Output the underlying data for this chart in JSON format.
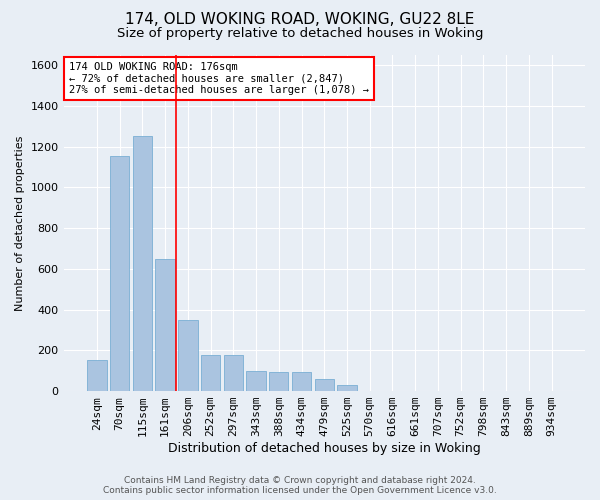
{
  "title1": "174, OLD WOKING ROAD, WOKING, GU22 8LE",
  "title2": "Size of property relative to detached houses in Woking",
  "xlabel": "Distribution of detached houses by size in Woking",
  "ylabel": "Number of detached properties",
  "categories": [
    "24sqm",
    "70sqm",
    "115sqm",
    "161sqm",
    "206sqm",
    "252sqm",
    "297sqm",
    "343sqm",
    "388sqm",
    "434sqm",
    "479sqm",
    "525sqm",
    "570sqm",
    "616sqm",
    "661sqm",
    "707sqm",
    "752sqm",
    "798sqm",
    "843sqm",
    "889sqm",
    "934sqm"
  ],
  "values": [
    155,
    1155,
    1250,
    650,
    350,
    175,
    175,
    100,
    95,
    95,
    60,
    30,
    0,
    0,
    0,
    0,
    0,
    0,
    0,
    0,
    0
  ],
  "bar_color": "#aac4e0",
  "bar_edge_color": "#7aafd4",
  "vline_color": "red",
  "vline_x": 3.5,
  "annotation_text": "174 OLD WOKING ROAD: 176sqm\n← 72% of detached houses are smaller (2,847)\n27% of semi-detached houses are larger (1,078) →",
  "annotation_box_color": "white",
  "annotation_box_edge_color": "red",
  "ylim": [
    0,
    1650
  ],
  "yticks": [
    0,
    200,
    400,
    600,
    800,
    1000,
    1200,
    1400,
    1600
  ],
  "bg_color": "#e8eef5",
  "plot_bg_color": "#e8eef5",
  "footer1": "Contains HM Land Registry data © Crown copyright and database right 2024.",
  "footer2": "Contains public sector information licensed under the Open Government Licence v3.0.",
  "title1_fontsize": 11,
  "title2_fontsize": 9.5,
  "xlabel_fontsize": 9,
  "ylabel_fontsize": 8,
  "tick_fontsize": 8,
  "footer_fontsize": 6.5,
  "ann_fontsize": 7.5
}
